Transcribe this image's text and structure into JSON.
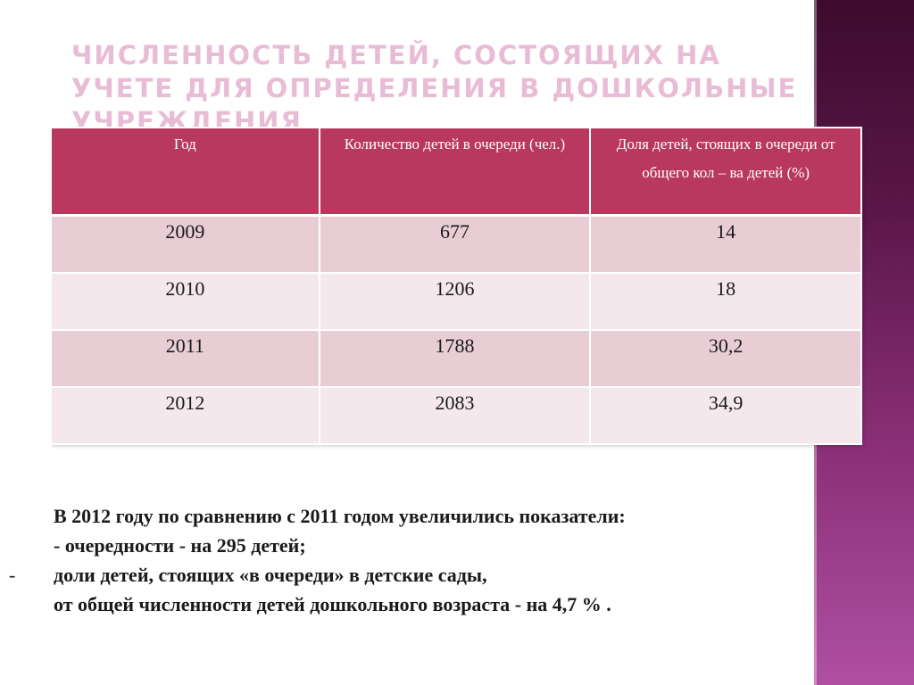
{
  "slide": {
    "title": "Численность детей, состоящих на учете для определения в дошкольные учреждения"
  },
  "table": {
    "headers": [
      "Год",
      "Количество детей в очереди (чел.)",
      "Доля детей, стоящих в очереди от общего кол – ва детей (%)"
    ],
    "rows": [
      [
        "2009",
        "677",
        "14"
      ],
      [
        "2010",
        "1206",
        "18"
      ],
      [
        "2011",
        "1788",
        "30,2"
      ],
      [
        "2012",
        "2083",
        "34,9"
      ]
    ]
  },
  "summary": {
    "line1": "В 2012 году по сравнению с 2011 годом увеличились показатели:",
    "line2": "-  очередности  - на 295 детей;",
    "line3_dash": "-",
    "line3": "доли детей, стоящих «в очереди» в детские сады,",
    "line4": "от общей численности детей дошкольного возраста  - на  4,7 % ."
  },
  "colors": {
    "header_bg": "#b9385f",
    "row_odd": "#e9cdd5",
    "row_even": "#f4e8ec",
    "title": "#e9bcd6",
    "side_bar": "#5a1648"
  }
}
